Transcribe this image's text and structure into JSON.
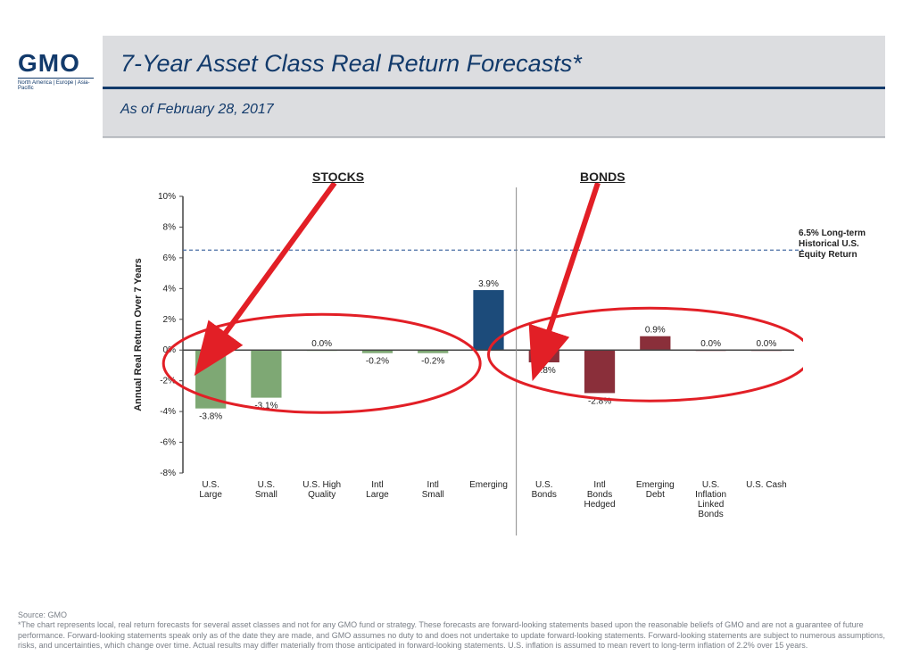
{
  "logo": {
    "main": "GMO",
    "sub": "North America | Europe | Asia-Pacific"
  },
  "header": {
    "title": "7-Year Asset Class Real Return Forecasts*",
    "as_of": "As of February 28, 2017"
  },
  "chart": {
    "type": "bar",
    "y_axis_label": "Annual Real Return Over 7 Years",
    "ylim": [
      -8,
      10
    ],
    "ytick_step": 2,
    "categories": [
      "U.S. Large",
      "U.S. Small",
      "U.S. High Quality",
      "Intl Large",
      "Intl Small",
      "Emerging",
      "U.S. Bonds",
      "Intl Bonds Hedged",
      "Emerging Debt",
      "U.S. Inflation Linked Bonds",
      "U.S. Cash"
    ],
    "values": [
      -3.8,
      -3.1,
      0.0,
      -0.2,
      -0.2,
      3.9,
      -0.8,
      -2.8,
      0.9,
      0.0,
      0.0
    ],
    "colors": [
      "#7ea874",
      "#7ea874",
      "#7ea874",
      "#7ea874",
      "#7ea874",
      "#1c4b7a",
      "#8a2f3a",
      "#8a2f3a",
      "#8a2f3a",
      "#8a2f3a",
      "#8a2f3a"
    ],
    "divider_after_index": 5,
    "reference_line": {
      "value": 6.5,
      "label": "6.5% Long-term Historical U.S. Equity Return",
      "color": "#4a6fa5",
      "dash": "4 3"
    },
    "axis_color": "#444444",
    "grid_color": "#d8d8d8",
    "font_size_axis": 10,
    "font_size_value_label": 10,
    "background": "#ffffff",
    "bar_width": 0.55
  },
  "annotations": {
    "stocks": {
      "label": "STOCKS"
    },
    "bonds": {
      "label": "BONDS"
    },
    "ellipse_color": "#e21f26",
    "arrow_color": "#e21f26"
  },
  "footer": {
    "source": "Source: GMO",
    "disclaimer": "*The chart represents local, real return forecasts for several asset classes and not for any GMO fund or strategy. These forecasts are forward-looking statements based upon the reasonable beliefs of GMO and are not a guarantee of future performance. Forward-looking statements speak only as of the date they are made, and GMO assumes no duty to and does not undertake to update forward-looking statements. Forward-looking statements are subject to numerous assumptions, risks, and uncertainties, which change over time. Actual results may differ materially from those anticipated in forward-looking statements. U.S. inflation is assumed to mean revert to long-term inflation of 2.2% over 15 years."
  }
}
